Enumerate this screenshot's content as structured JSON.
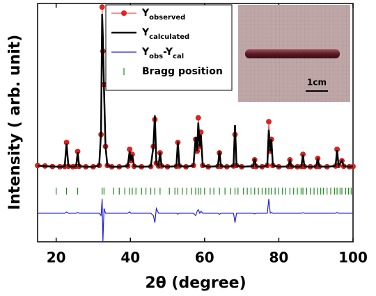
{
  "chart_data": {
    "type": "line",
    "xlabel": "2θ (degree)",
    "ylabel": "Intensity ( arb. unit)",
    "xlim": [
      15,
      100
    ],
    "xticks": [
      20,
      40,
      60,
      80,
      100
    ],
    "ylim": [
      0,
      100
    ],
    "x": [
      15,
      17,
      19,
      21,
      22.3,
      22.8,
      23.3,
      24.5,
      25.4,
      25.8,
      26.2,
      28,
      30,
      31.6,
      32.1,
      32.4,
      32.6,
      32.9,
      33.3,
      33.8,
      35,
      37,
      39.3,
      39.8,
      40.1,
      40.5,
      41,
      43,
      45.5,
      46.2,
      46.6,
      47,
      47.6,
      48,
      48.4,
      50,
      52.4,
      52.8,
      53.2,
      55,
      57,
      57.6,
      58,
      58.3,
      58.7,
      59,
      59.5,
      61,
      63.6,
      64,
      64.4,
      66,
      67.8,
      68.2,
      68.6,
      70,
      73.1,
      73.5,
      73.9,
      75.5,
      76.9,
      77.3,
      77.7,
      78,
      78.4,
      80,
      82.6,
      83,
      83.4,
      85,
      86.1,
      86.5,
      86.9,
      88.5,
      90.1,
      90.5,
      90.9,
      93,
      95.3,
      95.7,
      96.1,
      97,
      97.5,
      99,
      100
    ],
    "series": [
      {
        "name": [
          "Y",
          "observed"
        ],
        "color": "#e8201c",
        "marker": true,
        "values": [
          32,
          31.8,
          31.6,
          31.5,
          31.6,
          41.7,
          31.7,
          31.5,
          31.7,
          37.9,
          31.7,
          31.5,
          31.5,
          32,
          45,
          98.5,
          80,
          66,
          40,
          32,
          31.5,
          31.5,
          31.8,
          38.8,
          34,
          36.7,
          31.7,
          31.5,
          31.6,
          40,
          51.3,
          33,
          31.8,
          37.3,
          31.8,
          31.5,
          31.7,
          41.7,
          31.8,
          31.5,
          32,
          43,
          38,
          52,
          40,
          46,
          32,
          31.5,
          31.7,
          37.3,
          31.7,
          31.5,
          31.8,
          45,
          32,
          31.5,
          31.7,
          34.4,
          31.6,
          31.5,
          32,
          50.4,
          38,
          43,
          32,
          31.5,
          31.6,
          34.4,
          31.6,
          31.5,
          31.6,
          36.7,
          31.6,
          31.5,
          31.6,
          35,
          31.6,
          31.5,
          31.8,
          38.8,
          32,
          34,
          31.7,
          31.5,
          31.6
        ]
      },
      {
        "name": [
          "Y",
          "calculated"
        ],
        "color": "#000000",
        "width": 2.5,
        "values": [
          32,
          31.7,
          31.6,
          31.5,
          31.6,
          41.2,
          31.7,
          31.5,
          31.7,
          37.6,
          31.7,
          31.5,
          31.5,
          32,
          46,
          95.6,
          85,
          64,
          40,
          32,
          31.5,
          31.5,
          31.8,
          38,
          34,
          36.5,
          31.7,
          31.5,
          31.6,
          40,
          53,
          33,
          31.8,
          37.5,
          31.8,
          31.5,
          31.7,
          42,
          31.8,
          31.5,
          32,
          44,
          38,
          50,
          40,
          45,
          32,
          31.5,
          31.7,
          38,
          31.7,
          31.5,
          31.8,
          49,
          32,
          31.5,
          31.7,
          34.8,
          31.6,
          31.5,
          32,
          47,
          38,
          43,
          32,
          31.5,
          31.6,
          34.5,
          31.6,
          31.5,
          31.6,
          36.5,
          31.6,
          31.5,
          31.6,
          35,
          31.6,
          31.5,
          31.8,
          38.5,
          32,
          34,
          31.7,
          31.5,
          31.6
        ]
      },
      {
        "name": [
          "Y",
          "obs",
          "-Y",
          "cal"
        ],
        "color": "#1f1fe0",
        "width": 1.2,
        "values": [
          12,
          12,
          12,
          12,
          12,
          12.5,
          12,
          12,
          12,
          12.3,
          12,
          12,
          12,
          12,
          11,
          18,
          0,
          14,
          12,
          12,
          12,
          12,
          12,
          12.6,
          12,
          12,
          12,
          12,
          12,
          11,
          8,
          14,
          12,
          12,
          12,
          12,
          12,
          11.6,
          12,
          12,
          12,
          11,
          12.8,
          13.5,
          12,
          12.8,
          12,
          12,
          12,
          11.5,
          12,
          12,
          12,
          8,
          12,
          12,
          12,
          11.7,
          12,
          12,
          12,
          18,
          12,
          12.3,
          12,
          12,
          12,
          12,
          12,
          12,
          12,
          12.2,
          12,
          12,
          12,
          12,
          12,
          12,
          12,
          12.3,
          12,
          12,
          12,
          12,
          12
        ]
      },
      {
        "name": [
          "Bragg position"
        ],
        "color": "#1a8a1a",
        "positions": [
          20,
          22.8,
          25.8,
          32.4,
          32.9,
          35.5,
          37,
          38.5,
          39.8,
          40.5,
          41.5,
          43,
          44.2,
          45.5,
          46.6,
          48,
          50.5,
          52,
          52.8,
          54,
          55.2,
          56.5,
          57.6,
          58.3,
          59,
          60,
          61.5,
          62.5,
          64,
          65.5,
          67,
          68.2,
          69,
          70.5,
          71.5,
          72.5,
          73.5,
          74.5,
          75.5,
          76.5,
          77.3,
          78,
          79,
          80,
          81,
          81.8,
          83,
          84,
          85,
          86,
          86.5,
          87.5,
          88.5,
          89.5,
          90.5,
          91.3,
          92,
          93,
          94,
          95,
          95.7,
          96.5,
          97,
          98,
          98.8,
          99.5
        ]
      }
    ],
    "inset": {
      "scale_label": "1cm"
    }
  }
}
